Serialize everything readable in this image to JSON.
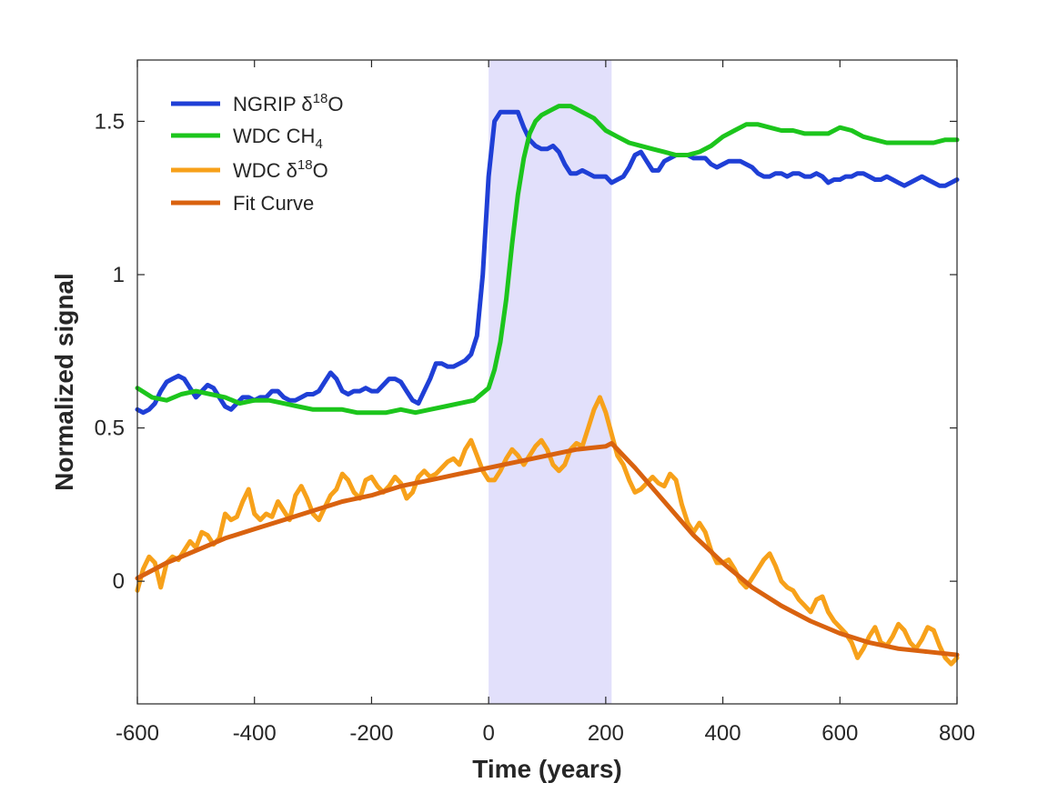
{
  "chart_data": {
    "type": "line",
    "title": "",
    "xlabel": "Time (years)",
    "ylabel": "Normalized signal",
    "xlim": [
      -600,
      800
    ],
    "ylim": [
      -0.4,
      1.7
    ],
    "xticks": [
      -600,
      -400,
      -200,
      0,
      200,
      400,
      600,
      800
    ],
    "xtick_labels": [
      "-600",
      "-400",
      "-200",
      "0",
      "200",
      "400",
      "600",
      "800"
    ],
    "yticks": [
      0,
      0.5,
      1,
      1.5
    ],
    "ytick_labels": [
      "0",
      "0.5",
      "1",
      "1.5"
    ],
    "grid": false,
    "legend_position": "top-left",
    "shaded_region": {
      "x": [
        0,
        210
      ],
      "color": "#e2e0fb"
    },
    "series": [
      {
        "name": "NGRIP δ18O",
        "name_main": "NGRIP δ",
        "name_sup": "18",
        "name_end": "O",
        "color": "#1f3fd6",
        "x": [
          -600,
          -590,
          -580,
          -570,
          -560,
          -550,
          -540,
          -530,
          -520,
          -510,
          -500,
          -490,
          -480,
          -470,
          -460,
          -450,
          -440,
          -430,
          -420,
          -410,
          -400,
          -390,
          -380,
          -370,
          -360,
          -350,
          -340,
          -330,
          -320,
          -310,
          -300,
          -290,
          -280,
          -270,
          -260,
          -250,
          -240,
          -230,
          -220,
          -210,
          -200,
          -190,
          -180,
          -170,
          -160,
          -150,
          -140,
          -130,
          -120,
          -110,
          -100,
          -90,
          -80,
          -70,
          -60,
          -50,
          -40,
          -30,
          -20,
          -10,
          0,
          10,
          20,
          30,
          40,
          50,
          60,
          70,
          80,
          90,
          100,
          110,
          120,
          130,
          140,
          150,
          160,
          170,
          180,
          190,
          200,
          210,
          220,
          230,
          240,
          250,
          260,
          270,
          280,
          290,
          300,
          310,
          320,
          330,
          340,
          350,
          360,
          370,
          380,
          390,
          400,
          410,
          420,
          430,
          440,
          450,
          460,
          470,
          480,
          490,
          500,
          510,
          520,
          530,
          540,
          550,
          560,
          570,
          580,
          590,
          600,
          610,
          620,
          630,
          640,
          650,
          660,
          670,
          680,
          690,
          700,
          710,
          720,
          730,
          740,
          750,
          760,
          770,
          780,
          790,
          800
        ],
        "y": [
          0.56,
          0.55,
          0.56,
          0.58,
          0.62,
          0.65,
          0.66,
          0.67,
          0.66,
          0.63,
          0.6,
          0.62,
          0.64,
          0.63,
          0.6,
          0.57,
          0.56,
          0.58,
          0.6,
          0.6,
          0.59,
          0.6,
          0.6,
          0.62,
          0.62,
          0.6,
          0.59,
          0.59,
          0.6,
          0.61,
          0.61,
          0.62,
          0.65,
          0.68,
          0.66,
          0.62,
          0.61,
          0.62,
          0.62,
          0.63,
          0.62,
          0.62,
          0.64,
          0.66,
          0.66,
          0.65,
          0.62,
          0.59,
          0.58,
          0.62,
          0.66,
          0.71,
          0.71,
          0.7,
          0.7,
          0.71,
          0.72,
          0.74,
          0.8,
          1.0,
          1.32,
          1.5,
          1.53,
          1.53,
          1.53,
          1.53,
          1.48,
          1.44,
          1.42,
          1.41,
          1.41,
          1.42,
          1.4,
          1.36,
          1.33,
          1.33,
          1.34,
          1.33,
          1.32,
          1.32,
          1.32,
          1.3,
          1.31,
          1.32,
          1.35,
          1.39,
          1.4,
          1.37,
          1.34,
          1.34,
          1.37,
          1.38,
          1.39,
          1.39,
          1.39,
          1.38,
          1.38,
          1.38,
          1.36,
          1.35,
          1.36,
          1.37,
          1.37,
          1.37,
          1.36,
          1.35,
          1.33,
          1.32,
          1.32,
          1.33,
          1.33,
          1.32,
          1.33,
          1.33,
          1.32,
          1.32,
          1.33,
          1.32,
          1.3,
          1.31,
          1.31,
          1.32,
          1.32,
          1.33,
          1.33,
          1.32,
          1.31,
          1.31,
          1.32,
          1.31,
          1.3,
          1.29,
          1.3,
          1.31,
          1.32,
          1.31,
          1.3,
          1.29,
          1.29,
          1.3,
          1.31
        ]
      },
      {
        "name": "WDC CH4",
        "name_main": "WDC CH",
        "name_sub": "4",
        "color": "#1cc51c",
        "x": [
          -600,
          -575,
          -550,
          -525,
          -500,
          -475,
          -450,
          -425,
          -400,
          -375,
          -350,
          -325,
          -300,
          -275,
          -250,
          -225,
          -200,
          -175,
          -150,
          -125,
          -100,
          -75,
          -50,
          -25,
          0,
          10,
          20,
          30,
          40,
          50,
          60,
          70,
          80,
          90,
          100,
          110,
          120,
          130,
          140,
          150,
          160,
          170,
          180,
          190,
          200,
          220,
          240,
          260,
          280,
          300,
          320,
          340,
          360,
          380,
          400,
          420,
          440,
          460,
          480,
          500,
          520,
          540,
          560,
          580,
          600,
          620,
          640,
          660,
          680,
          700,
          720,
          740,
          760,
          780,
          800
        ],
        "y": [
          0.63,
          0.6,
          0.59,
          0.61,
          0.62,
          0.61,
          0.6,
          0.58,
          0.59,
          0.59,
          0.58,
          0.57,
          0.56,
          0.56,
          0.56,
          0.55,
          0.55,
          0.55,
          0.56,
          0.55,
          0.56,
          0.57,
          0.58,
          0.59,
          0.63,
          0.69,
          0.78,
          0.92,
          1.1,
          1.26,
          1.38,
          1.46,
          1.5,
          1.52,
          1.53,
          1.54,
          1.55,
          1.55,
          1.55,
          1.54,
          1.53,
          1.52,
          1.51,
          1.49,
          1.47,
          1.45,
          1.43,
          1.42,
          1.41,
          1.4,
          1.39,
          1.39,
          1.4,
          1.42,
          1.45,
          1.47,
          1.49,
          1.49,
          1.48,
          1.47,
          1.47,
          1.46,
          1.46,
          1.46,
          1.48,
          1.47,
          1.45,
          1.44,
          1.43,
          1.43,
          1.43,
          1.43,
          1.43,
          1.44,
          1.44
        ]
      },
      {
        "name": "WDC δ18O",
        "name_main": "WDC δ",
        "name_sup": "18",
        "name_end": "O",
        "color": "#f7a11a",
        "x": [
          -600,
          -590,
          -580,
          -570,
          -560,
          -550,
          -540,
          -530,
          -520,
          -510,
          -500,
          -490,
          -480,
          -470,
          -460,
          -450,
          -440,
          -430,
          -420,
          -410,
          -400,
          -390,
          -380,
          -370,
          -360,
          -350,
          -340,
          -330,
          -320,
          -310,
          -300,
          -290,
          -280,
          -270,
          -260,
          -250,
          -240,
          -230,
          -220,
          -210,
          -200,
          -190,
          -180,
          -170,
          -160,
          -150,
          -140,
          -130,
          -120,
          -110,
          -100,
          -90,
          -80,
          -70,
          -60,
          -50,
          -40,
          -30,
          -20,
          -10,
          0,
          10,
          20,
          30,
          40,
          50,
          60,
          70,
          80,
          90,
          100,
          110,
          120,
          130,
          140,
          150,
          160,
          170,
          180,
          190,
          200,
          210,
          220,
          230,
          240,
          250,
          260,
          270,
          280,
          290,
          300,
          310,
          320,
          330,
          340,
          350,
          360,
          370,
          380,
          390,
          400,
          410,
          420,
          430,
          440,
          450,
          460,
          470,
          480,
          490,
          500,
          510,
          520,
          530,
          540,
          550,
          560,
          570,
          580,
          590,
          600,
          610,
          620,
          630,
          640,
          650,
          660,
          670,
          680,
          690,
          700,
          710,
          720,
          730,
          740,
          750,
          760,
          770,
          780,
          790,
          800
        ],
        "y": [
          -0.03,
          0.04,
          0.08,
          0.06,
          -0.02,
          0.06,
          0.08,
          0.07,
          0.1,
          0.13,
          0.11,
          0.16,
          0.15,
          0.12,
          0.14,
          0.22,
          0.2,
          0.21,
          0.26,
          0.3,
          0.22,
          0.2,
          0.22,
          0.21,
          0.26,
          0.23,
          0.2,
          0.28,
          0.31,
          0.27,
          0.22,
          0.2,
          0.24,
          0.28,
          0.3,
          0.35,
          0.33,
          0.29,
          0.27,
          0.33,
          0.34,
          0.31,
          0.29,
          0.31,
          0.34,
          0.32,
          0.27,
          0.29,
          0.34,
          0.36,
          0.34,
          0.35,
          0.37,
          0.39,
          0.4,
          0.38,
          0.43,
          0.46,
          0.41,
          0.36,
          0.33,
          0.33,
          0.36,
          0.4,
          0.43,
          0.41,
          0.38,
          0.41,
          0.44,
          0.46,
          0.43,
          0.38,
          0.36,
          0.38,
          0.43,
          0.45,
          0.44,
          0.5,
          0.56,
          0.6,
          0.55,
          0.48,
          0.41,
          0.38,
          0.33,
          0.29,
          0.3,
          0.32,
          0.34,
          0.32,
          0.31,
          0.35,
          0.33,
          0.25,
          0.19,
          0.16,
          0.19,
          0.16,
          0.1,
          0.06,
          0.06,
          0.07,
          0.04,
          0.0,
          -0.02,
          0.01,
          0.04,
          0.07,
          0.09,
          0.05,
          0.0,
          -0.02,
          -0.03,
          -0.06,
          -0.08,
          -0.1,
          -0.06,
          -0.05,
          -0.1,
          -0.13,
          -0.15,
          -0.17,
          -0.2,
          -0.25,
          -0.22,
          -0.18,
          -0.15,
          -0.2,
          -0.21,
          -0.18,
          -0.14,
          -0.16,
          -0.2,
          -0.22,
          -0.19,
          -0.15,
          -0.16,
          -0.21,
          -0.25,
          -0.27,
          -0.25
        ]
      },
      {
        "name": "Fit Curve",
        "color": "#d9620f",
        "x": [
          -600,
          -550,
          -500,
          -450,
          -400,
          -350,
          -300,
          -250,
          -200,
          -150,
          -100,
          -50,
          0,
          50,
          100,
          150,
          200,
          210,
          250,
          300,
          350,
          400,
          450,
          500,
          550,
          600,
          650,
          700,
          750,
          800
        ],
        "y": [
          0.01,
          0.06,
          0.1,
          0.14,
          0.17,
          0.2,
          0.23,
          0.26,
          0.28,
          0.31,
          0.33,
          0.35,
          0.37,
          0.39,
          0.41,
          0.43,
          0.44,
          0.45,
          0.37,
          0.26,
          0.15,
          0.06,
          -0.02,
          -0.08,
          -0.13,
          -0.17,
          -0.2,
          -0.22,
          -0.23,
          -0.24
        ]
      }
    ]
  }
}
